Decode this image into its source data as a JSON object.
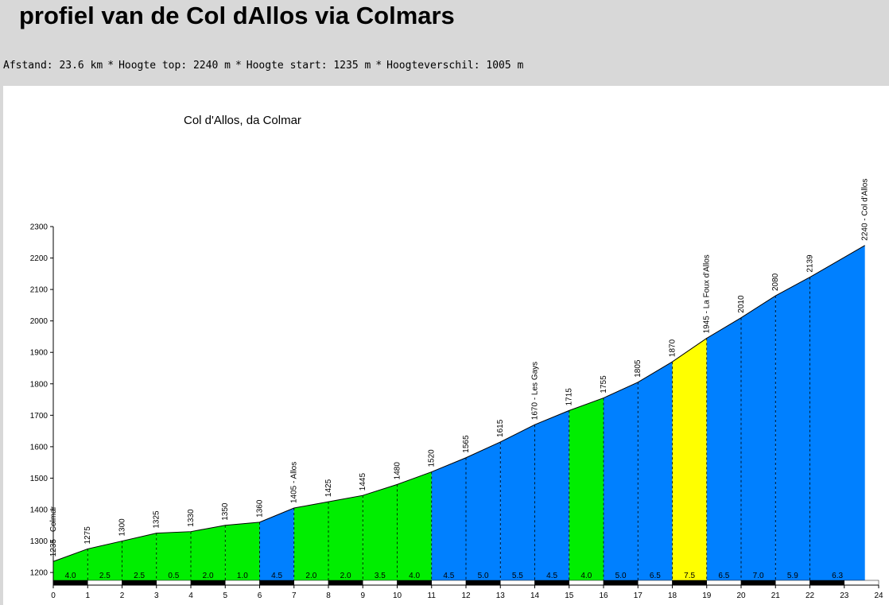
{
  "page": {
    "title": "profiel van de Col dAllos via Colmars",
    "stats": [
      "Afstand: 23.6 km",
      "Hoogte top: 2240 m",
      "Hoogte start: 1235 m",
      "Hoogteverschil: 1005 m"
    ],
    "separator": "*"
  },
  "chart_data": {
    "type": "area",
    "title": "Col d'Allos, da Colmar",
    "xlabel": "",
    "ylabel": "",
    "xlim": [
      0,
      24
    ],
    "ylim": [
      1175,
      2300
    ],
    "x_ticks": [
      0,
      1,
      2,
      3,
      4,
      5,
      6,
      7,
      8,
      9,
      10,
      11,
      12,
      13,
      14,
      15,
      16,
      17,
      18,
      19,
      20,
      21,
      22,
      23,
      24
    ],
    "y_ticks": [
      1200,
      1300,
      1400,
      1500,
      1600,
      1700,
      1800,
      1900,
      2000,
      2100,
      2200,
      2300
    ],
    "grid": false,
    "colors": {
      "green": "#00ee00",
      "blue": "#0080ff",
      "yellow": "#ffff00",
      "outline": "#000000"
    },
    "points": [
      {
        "x": 0,
        "y": 1235,
        "label": "1235 - Colmar"
      },
      {
        "x": 1,
        "y": 1275,
        "label": "1275"
      },
      {
        "x": 2,
        "y": 1300,
        "label": "1300"
      },
      {
        "x": 3,
        "y": 1325,
        "label": "1325"
      },
      {
        "x": 4,
        "y": 1330,
        "label": "1330"
      },
      {
        "x": 5,
        "y": 1350,
        "label": "1350"
      },
      {
        "x": 6,
        "y": 1360,
        "label": "1360"
      },
      {
        "x": 7,
        "y": 1405,
        "label": "1405 - Allos"
      },
      {
        "x": 8,
        "y": 1425,
        "label": "1425"
      },
      {
        "x": 9,
        "y": 1445,
        "label": "1445"
      },
      {
        "x": 10,
        "y": 1480,
        "label": "1480"
      },
      {
        "x": 11,
        "y": 1520,
        "label": "1520"
      },
      {
        "x": 12,
        "y": 1565,
        "label": "1565"
      },
      {
        "x": 13,
        "y": 1615,
        "label": "1615"
      },
      {
        "x": 14,
        "y": 1670,
        "label": "1670 - Les Gays"
      },
      {
        "x": 15,
        "y": 1715,
        "label": "1715"
      },
      {
        "x": 16,
        "y": 1755,
        "label": "1755"
      },
      {
        "x": 17,
        "y": 1805,
        "label": "1805"
      },
      {
        "x": 18,
        "y": 1870,
        "label": "1870"
      },
      {
        "x": 19,
        "y": 1945,
        "label": "1945 - La Foux d'Allos"
      },
      {
        "x": 20,
        "y": 2010,
        "label": "2010"
      },
      {
        "x": 21,
        "y": 2080,
        "label": "2080"
      },
      {
        "x": 22,
        "y": 2139,
        "label": "2139"
      },
      {
        "x": 23.6,
        "y": 2240,
        "label": "2240 - Col d'Allos"
      }
    ],
    "segments": [
      {
        "gradient": "4.0",
        "color": "green"
      },
      {
        "gradient": "2.5",
        "color": "green"
      },
      {
        "gradient": "2.5",
        "color": "green"
      },
      {
        "gradient": "0.5",
        "color": "green"
      },
      {
        "gradient": "2.0",
        "color": "green"
      },
      {
        "gradient": "1.0",
        "color": "green"
      },
      {
        "gradient": "4.5",
        "color": "blue"
      },
      {
        "gradient": "2.0",
        "color": "green"
      },
      {
        "gradient": "2.0",
        "color": "green"
      },
      {
        "gradient": "3.5",
        "color": "green"
      },
      {
        "gradient": "4.0",
        "color": "green"
      },
      {
        "gradient": "4.5",
        "color": "blue"
      },
      {
        "gradient": "5.0",
        "color": "blue"
      },
      {
        "gradient": "5.5",
        "color": "blue"
      },
      {
        "gradient": "4.5",
        "color": "blue"
      },
      {
        "gradient": "4.0",
        "color": "green"
      },
      {
        "gradient": "5.0",
        "color": "blue"
      },
      {
        "gradient": "6.5",
        "color": "blue"
      },
      {
        "gradient": "7.5",
        "color": "yellow"
      },
      {
        "gradient": "6.5",
        "color": "blue"
      },
      {
        "gradient": "7.0",
        "color": "blue"
      },
      {
        "gradient": "5.9",
        "color": "blue"
      },
      {
        "gradient": "6.3",
        "color": "blue"
      }
    ]
  }
}
